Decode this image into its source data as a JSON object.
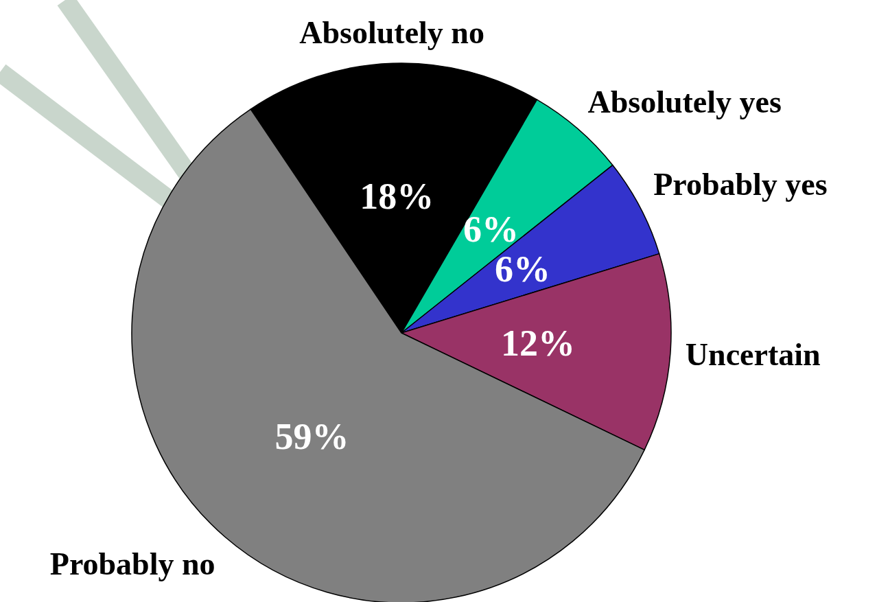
{
  "chart_data": {
    "type": "pie",
    "categories": [
      "Absolutely no",
      "Absolutely yes",
      "Probably yes",
      "Uncertain",
      "Probably no"
    ],
    "values": [
      18,
      6,
      6,
      12,
      59
    ],
    "colors": [
      "#000000",
      "#00cc99",
      "#3333cc",
      "#993366",
      "#808080"
    ],
    "value_labels": [
      "18%",
      "6%",
      "6%",
      "12%",
      "59%"
    ],
    "legend": false
  }
}
